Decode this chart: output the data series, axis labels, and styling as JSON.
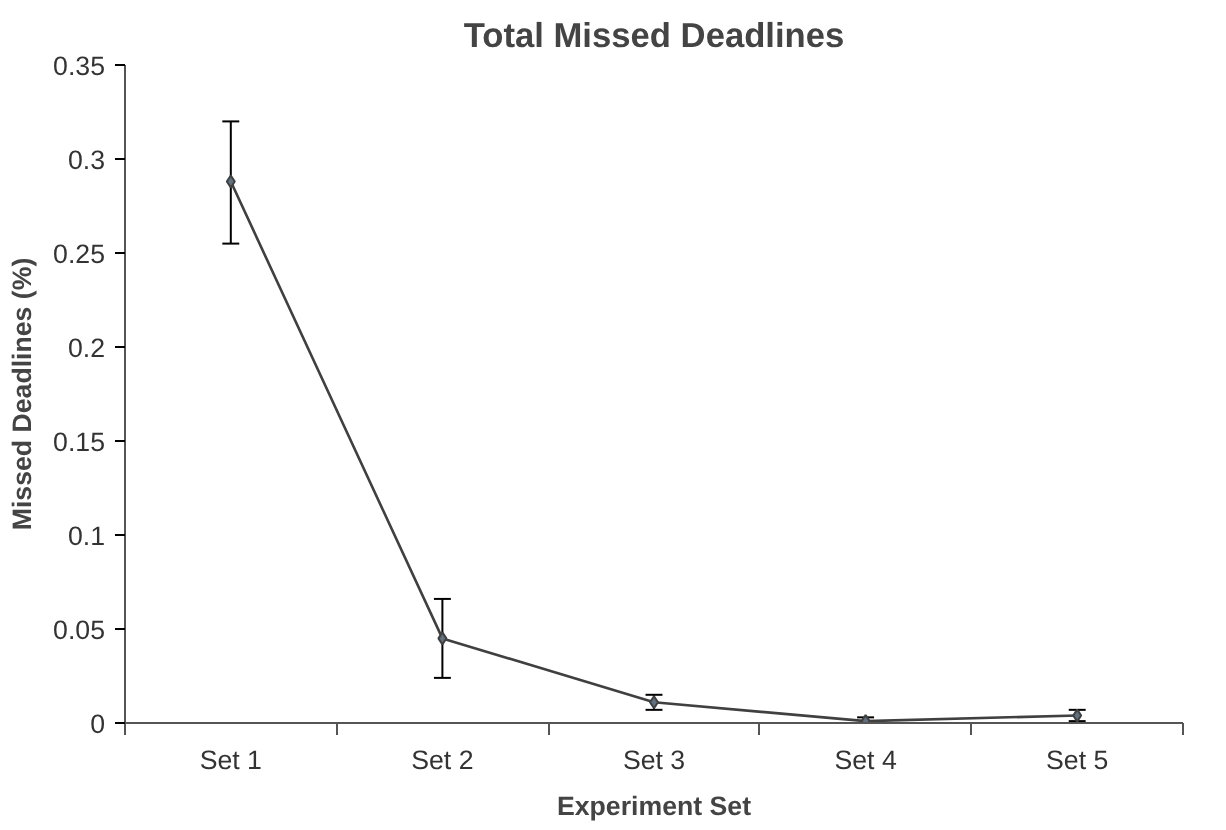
{
  "chart_data": {
    "type": "line",
    "title": "Total Missed Deadlines",
    "xlabel": "Experiment Set",
    "ylabel": "Missed Deadlines (%)",
    "categories": [
      "Set 1",
      "Set 2",
      "Set 3",
      "Set 4",
      "Set 5"
    ],
    "series": [
      {
        "color": "#404040",
        "values": [
          0.288,
          0.045,
          0.011,
          0.001,
          0.004
        ],
        "errors": [
          [
            0.255,
            0.32
          ],
          [
            0.024,
            0.066
          ],
          [
            0.007,
            0.015
          ],
          [
            0.0,
            0.003
          ],
          [
            0.001,
            0.007
          ]
        ]
      }
    ],
    "ylim": [
      0,
      0.35
    ],
    "yticks": [
      0,
      0.05,
      0.1,
      0.15,
      0.2,
      0.25,
      0.3,
      0.35
    ],
    "grid": false,
    "marker": "diamond",
    "line_style": "solid"
  }
}
